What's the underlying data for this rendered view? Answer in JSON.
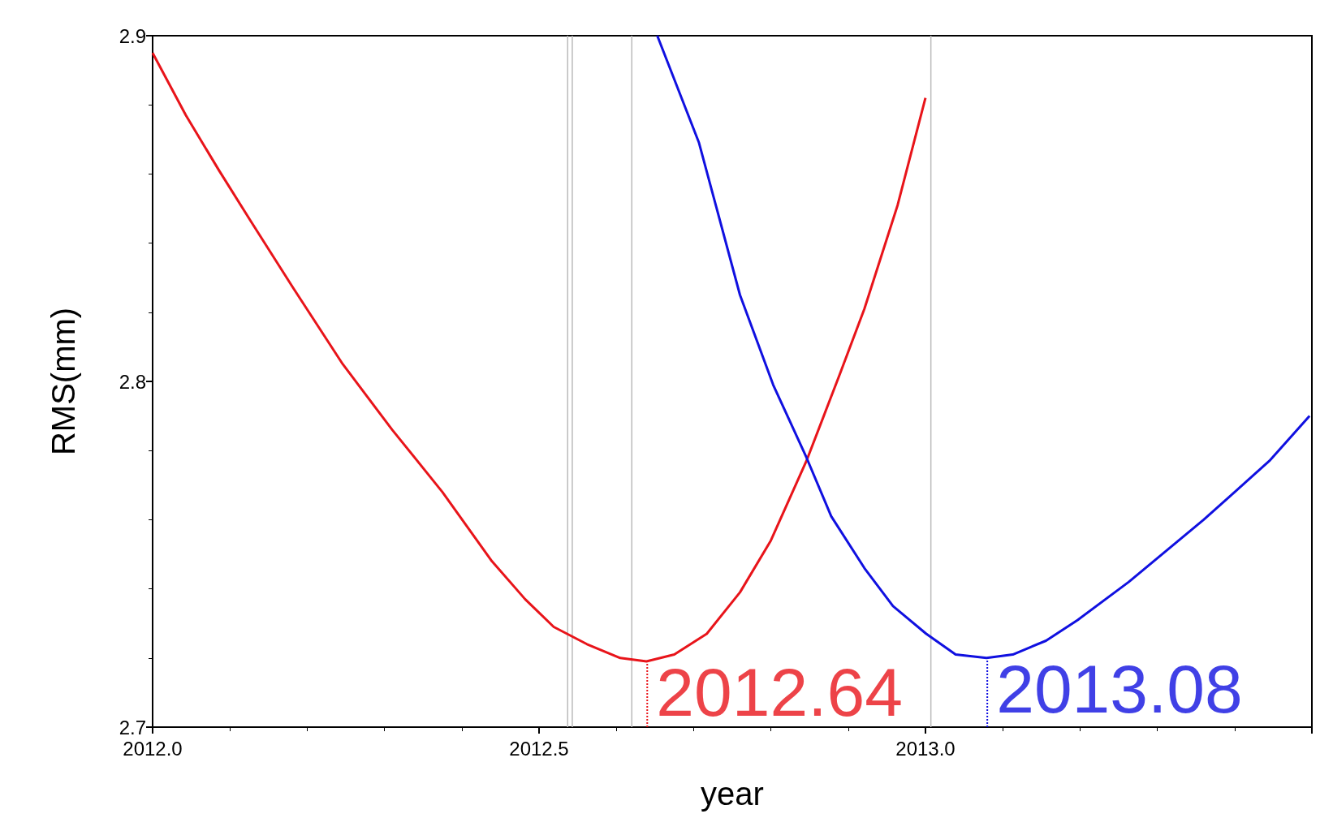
{
  "chart_data": {
    "type": "line",
    "xlabel": "year",
    "ylabel": "RMS(mm)",
    "xlim": [
      2012.0,
      2013.5
    ],
    "xticks": [
      {
        "value": 2012.0,
        "label": "2012.0"
      },
      {
        "value": 2012.5,
        "label": "2012.5"
      },
      {
        "value": 2013.0,
        "label": "2013.0"
      },
      {
        "value": 2013.5,
        "label": null
      }
    ],
    "ylim": [
      2.7,
      2.9
    ],
    "yticks": [
      2.7,
      2.8,
      2.9
    ],
    "grid": false,
    "marker": "none",
    "line_style": "solid",
    "series": [
      {
        "color": "#e8141a",
        "x": [
          2012.0,
          2012.043,
          2012.086,
          2012.128,
          2012.182,
          2012.246,
          2012.31,
          2012.375,
          2012.439,
          2012.482,
          2012.519,
          2012.562,
          2012.605,
          2012.639,
          2012.675,
          2012.717,
          2012.76,
          2012.8,
          2012.846,
          2012.889,
          2012.921,
          2012.964,
          2013.0
        ],
        "values": [
          2.895,
          2.877,
          2.861,
          2.846,
          2.827,
          2.805,
          2.786,
          2.768,
          2.748,
          2.737,
          2.729,
          2.724,
          2.72,
          2.719,
          2.721,
          2.727,
          2.739,
          2.754,
          2.777,
          2.802,
          2.821,
          2.851,
          2.882
        ]
      },
      {
        "color": "#1010e0",
        "x": [
          2012.653,
          2012.707,
          2012.76,
          2012.803,
          2012.846,
          2012.878,
          2012.921,
          2012.958,
          2013.001,
          2013.039,
          2013.079,
          2013.113,
          2013.156,
          2013.197,
          2013.263,
          2013.36,
          2013.445,
          2013.497
        ],
        "values": [
          2.9,
          2.869,
          2.825,
          2.799,
          2.778,
          2.761,
          2.746,
          2.735,
          2.727,
          2.721,
          2.72,
          2.721,
          2.725,
          2.731,
          2.742,
          2.76,
          2.777,
          2.79
        ]
      }
    ],
    "ref_lines": [
      {
        "axis": "x",
        "value": 2012.537,
        "color": "#bbbbbb"
      },
      {
        "axis": "x",
        "value": 2012.543,
        "color": "#bbbbbb"
      },
      {
        "axis": "x",
        "value": 2012.62,
        "color": "#bbbbbb"
      },
      {
        "axis": "x",
        "value": 2013.007,
        "color": "#bbbbbb"
      }
    ],
    "annotations": [
      {
        "text": "2012.64",
        "x": 2012.64,
        "y": 2.719
      },
      {
        "text": "2013.08",
        "x": 2013.08,
        "y": 2.72
      }
    ]
  }
}
